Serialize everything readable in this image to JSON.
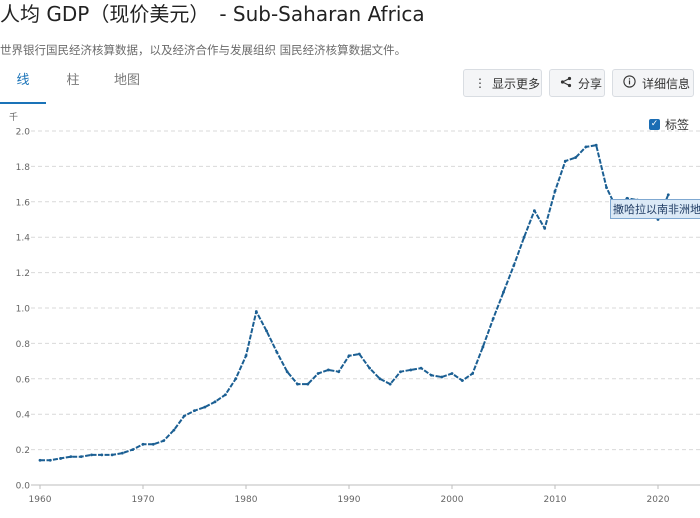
{
  "header": {
    "title": "人均 GDP（现价美元）",
    "subtitle": "- Sub-Saharan Africa",
    "source": "世界银行国民经济核算数据，以及经济合作与发展组织 国民经济核算数据文件。"
  },
  "tabs": [
    {
      "label": "线",
      "active": true
    },
    {
      "label": "柱",
      "active": false
    },
    {
      "label": "地图",
      "active": false
    }
  ],
  "toolbar": {
    "more_label": "显示更多",
    "share_label": "分享",
    "info_label": "详细信息"
  },
  "legend": {
    "label": "标签",
    "checked": true
  },
  "tooltip": {
    "label": "撒哈拉以南非洲地区"
  },
  "colors": {
    "accent": "#1a73b8",
    "line": "#1b5f93",
    "grid": "#d9d9d9"
  },
  "chart_data": {
    "type": "line",
    "ylabel": "千",
    "ylim": [
      0,
      2.0
    ],
    "xlim": [
      1960,
      2022
    ],
    "x_ticks": [
      1960,
      1970,
      1980,
      1990,
      2000,
      2010,
      2020
    ],
    "y_ticks": [
      0,
      0.2,
      0.4,
      0.6,
      0.8,
      1.0,
      1.2,
      1.4,
      1.6,
      1.8,
      2.0
    ],
    "y_tick_labels": [
      "0.0",
      "0.2",
      "0.4",
      "0.6",
      "0.8",
      "1.0",
      "1.2",
      "1.4",
      "1.6",
      "1.8",
      "2.0"
    ],
    "grid": true,
    "series": [
      {
        "name": "撒哈拉以南非洲地区",
        "x": [
          1960,
          1961,
          1962,
          1963,
          1964,
          1965,
          1966,
          1967,
          1968,
          1969,
          1970,
          1971,
          1972,
          1973,
          1974,
          1975,
          1976,
          1977,
          1978,
          1979,
          1980,
          1981,
          1982,
          1983,
          1984,
          1985,
          1986,
          1987,
          1988,
          1989,
          1990,
          1991,
          1992,
          1993,
          1994,
          1995,
          1996,
          1997,
          1998,
          1999,
          2000,
          2001,
          2002,
          2003,
          2004,
          2005,
          2006,
          2007,
          2008,
          2009,
          2010,
          2011,
          2012,
          2013,
          2014,
          2015,
          2016,
          2017,
          2018,
          2019,
          2020,
          2021
        ],
        "values": [
          0.14,
          0.14,
          0.15,
          0.16,
          0.16,
          0.17,
          0.17,
          0.17,
          0.18,
          0.2,
          0.23,
          0.23,
          0.25,
          0.31,
          0.39,
          0.42,
          0.44,
          0.47,
          0.51,
          0.6,
          0.73,
          0.98,
          0.87,
          0.75,
          0.64,
          0.57,
          0.57,
          0.63,
          0.65,
          0.64,
          0.73,
          0.74,
          0.66,
          0.6,
          0.57,
          0.64,
          0.65,
          0.66,
          0.62,
          0.61,
          0.63,
          0.59,
          0.63,
          0.78,
          0.94,
          1.09,
          1.24,
          1.4,
          1.55,
          1.45,
          1.66,
          1.83,
          1.85,
          1.91,
          1.92,
          1.68,
          1.56,
          1.62,
          1.61,
          1.6,
          1.5,
          1.64
        ]
      }
    ]
  }
}
